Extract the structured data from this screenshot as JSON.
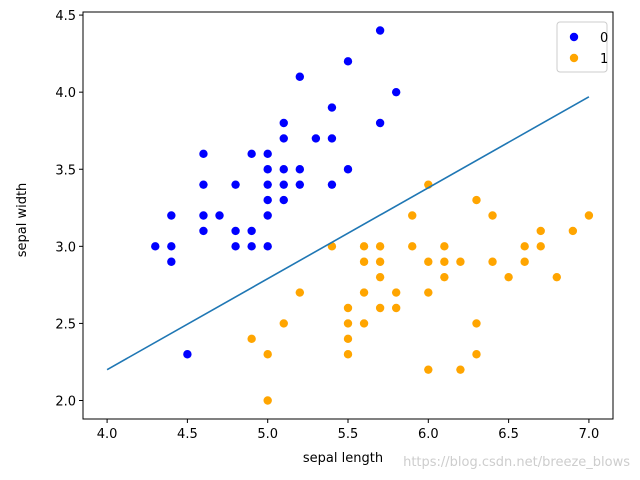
{
  "chart_data": {
    "type": "scatter",
    "xlabel": "sepal length",
    "ylabel": "sepal width",
    "xlim": [
      3.85,
      7.15
    ],
    "ylim": [
      1.88,
      4.52
    ],
    "xticks": [
      4.0,
      4.5,
      5.0,
      5.5,
      6.0,
      6.5,
      7.0
    ],
    "yticks": [
      2.0,
      2.5,
      3.0,
      3.5,
      4.0,
      4.5
    ],
    "grid": false,
    "legend_position": "top-right",
    "series": [
      {
        "name": "0",
        "color": "#0000ff",
        "points": [
          [
            5.7,
            4.4
          ],
          [
            5.5,
            4.2
          ],
          [
            5.2,
            4.1
          ],
          [
            5.8,
            4.0
          ],
          [
            5.4,
            3.9
          ],
          [
            5.1,
            3.8
          ],
          [
            5.7,
            3.8
          ],
          [
            5.1,
            3.7
          ],
          [
            5.3,
            3.7
          ],
          [
            5.4,
            3.7
          ],
          [
            4.6,
            3.6
          ],
          [
            4.9,
            3.6
          ],
          [
            5.0,
            3.6
          ],
          [
            5.0,
            3.5
          ],
          [
            5.1,
            3.5
          ],
          [
            5.2,
            3.5
          ],
          [
            5.5,
            3.5
          ],
          [
            4.6,
            3.4
          ],
          [
            4.8,
            3.4
          ],
          [
            5.0,
            3.4
          ],
          [
            5.1,
            3.4
          ],
          [
            5.2,
            3.4
          ],
          [
            5.4,
            3.4
          ],
          [
            5.0,
            3.3
          ],
          [
            5.1,
            3.3
          ],
          [
            4.4,
            3.2
          ],
          [
            4.6,
            3.2
          ],
          [
            4.7,
            3.2
          ],
          [
            5.0,
            3.2
          ],
          [
            4.6,
            3.1
          ],
          [
            4.8,
            3.1
          ],
          [
            4.9,
            3.1
          ],
          [
            4.3,
            3.0
          ],
          [
            4.4,
            3.0
          ],
          [
            4.8,
            3.0
          ],
          [
            4.9,
            3.0
          ],
          [
            5.0,
            3.0
          ],
          [
            4.4,
            2.9
          ],
          [
            4.5,
            2.3
          ]
        ]
      },
      {
        "name": "1",
        "color": "#ffa500",
        "points": [
          [
            6.0,
            3.4
          ],
          [
            6.3,
            3.3
          ],
          [
            5.9,
            3.2
          ],
          [
            6.4,
            3.2
          ],
          [
            7.0,
            3.2
          ],
          [
            6.7,
            3.1
          ],
          [
            6.9,
            3.1
          ],
          [
            5.4,
            3.0
          ],
          [
            5.6,
            3.0
          ],
          [
            5.7,
            3.0
          ],
          [
            5.9,
            3.0
          ],
          [
            6.1,
            3.0
          ],
          [
            6.6,
            3.0
          ],
          [
            6.7,
            3.0
          ],
          [
            5.6,
            2.9
          ],
          [
            5.7,
            2.9
          ],
          [
            6.0,
            2.9
          ],
          [
            6.1,
            2.9
          ],
          [
            6.2,
            2.9
          ],
          [
            6.4,
            2.9
          ],
          [
            6.6,
            2.9
          ],
          [
            5.7,
            2.8
          ],
          [
            6.1,
            2.8
          ],
          [
            6.5,
            2.8
          ],
          [
            6.8,
            2.8
          ],
          [
            5.2,
            2.7
          ],
          [
            5.6,
            2.7
          ],
          [
            5.8,
            2.7
          ],
          [
            6.0,
            2.7
          ],
          [
            5.5,
            2.6
          ],
          [
            5.7,
            2.6
          ],
          [
            5.8,
            2.6
          ],
          [
            5.1,
            2.5
          ],
          [
            5.5,
            2.5
          ],
          [
            5.6,
            2.5
          ],
          [
            6.3,
            2.5
          ],
          [
            4.9,
            2.4
          ],
          [
            5.5,
            2.4
          ],
          [
            5.0,
            2.3
          ],
          [
            5.5,
            2.3
          ],
          [
            6.3,
            2.3
          ],
          [
            6.0,
            2.2
          ],
          [
            6.2,
            2.2
          ],
          [
            5.0,
            2.0
          ]
        ]
      }
    ],
    "decision_line": {
      "color": "#1f77b4",
      "x": [
        4.0,
        7.0
      ],
      "y": [
        2.2,
        3.97
      ]
    }
  },
  "watermark": "https://blog.csdn.net/breeze_blows"
}
